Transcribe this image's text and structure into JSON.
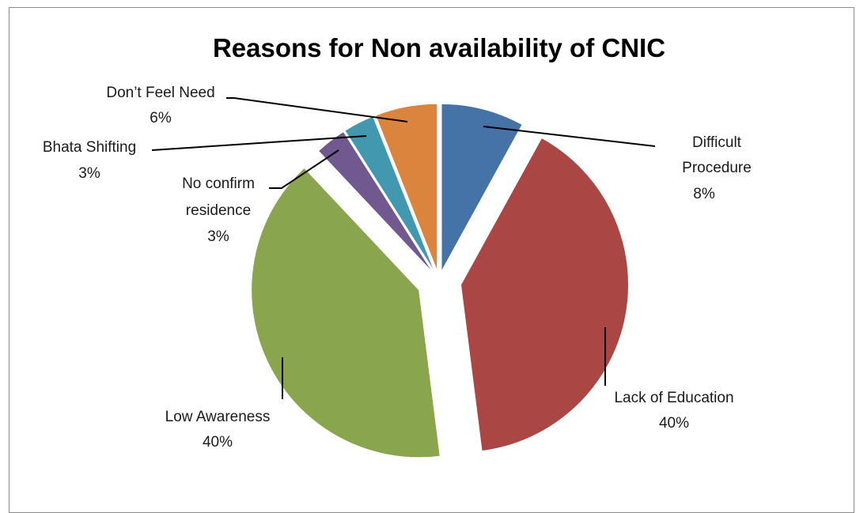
{
  "chart_data": {
    "type": "pie",
    "title": "Reasons for Non availability of CNIC",
    "exploded": true,
    "slices": [
      {
        "name": "Difficult Procedure",
        "value": 8,
        "pct_label": "8%",
        "color": "#4572A7"
      },
      {
        "name": "Lack of Education",
        "value": 40,
        "pct_label": "40%",
        "color": "#AA4643"
      },
      {
        "name": "Low Awareness",
        "value": 40,
        "pct_label": "40%",
        "color": "#89A54E"
      },
      {
        "name": "No confirm residence",
        "value": 3,
        "pct_label": "3%",
        "color": "#71588F"
      },
      {
        "name": "Bhata Shifting",
        "value": 3,
        "pct_label": "3%",
        "color": "#4198AF"
      },
      {
        "name": "Don’t Feel Need",
        "value": 6,
        "pct_label": "6%",
        "color": "#DB843D"
      }
    ]
  }
}
